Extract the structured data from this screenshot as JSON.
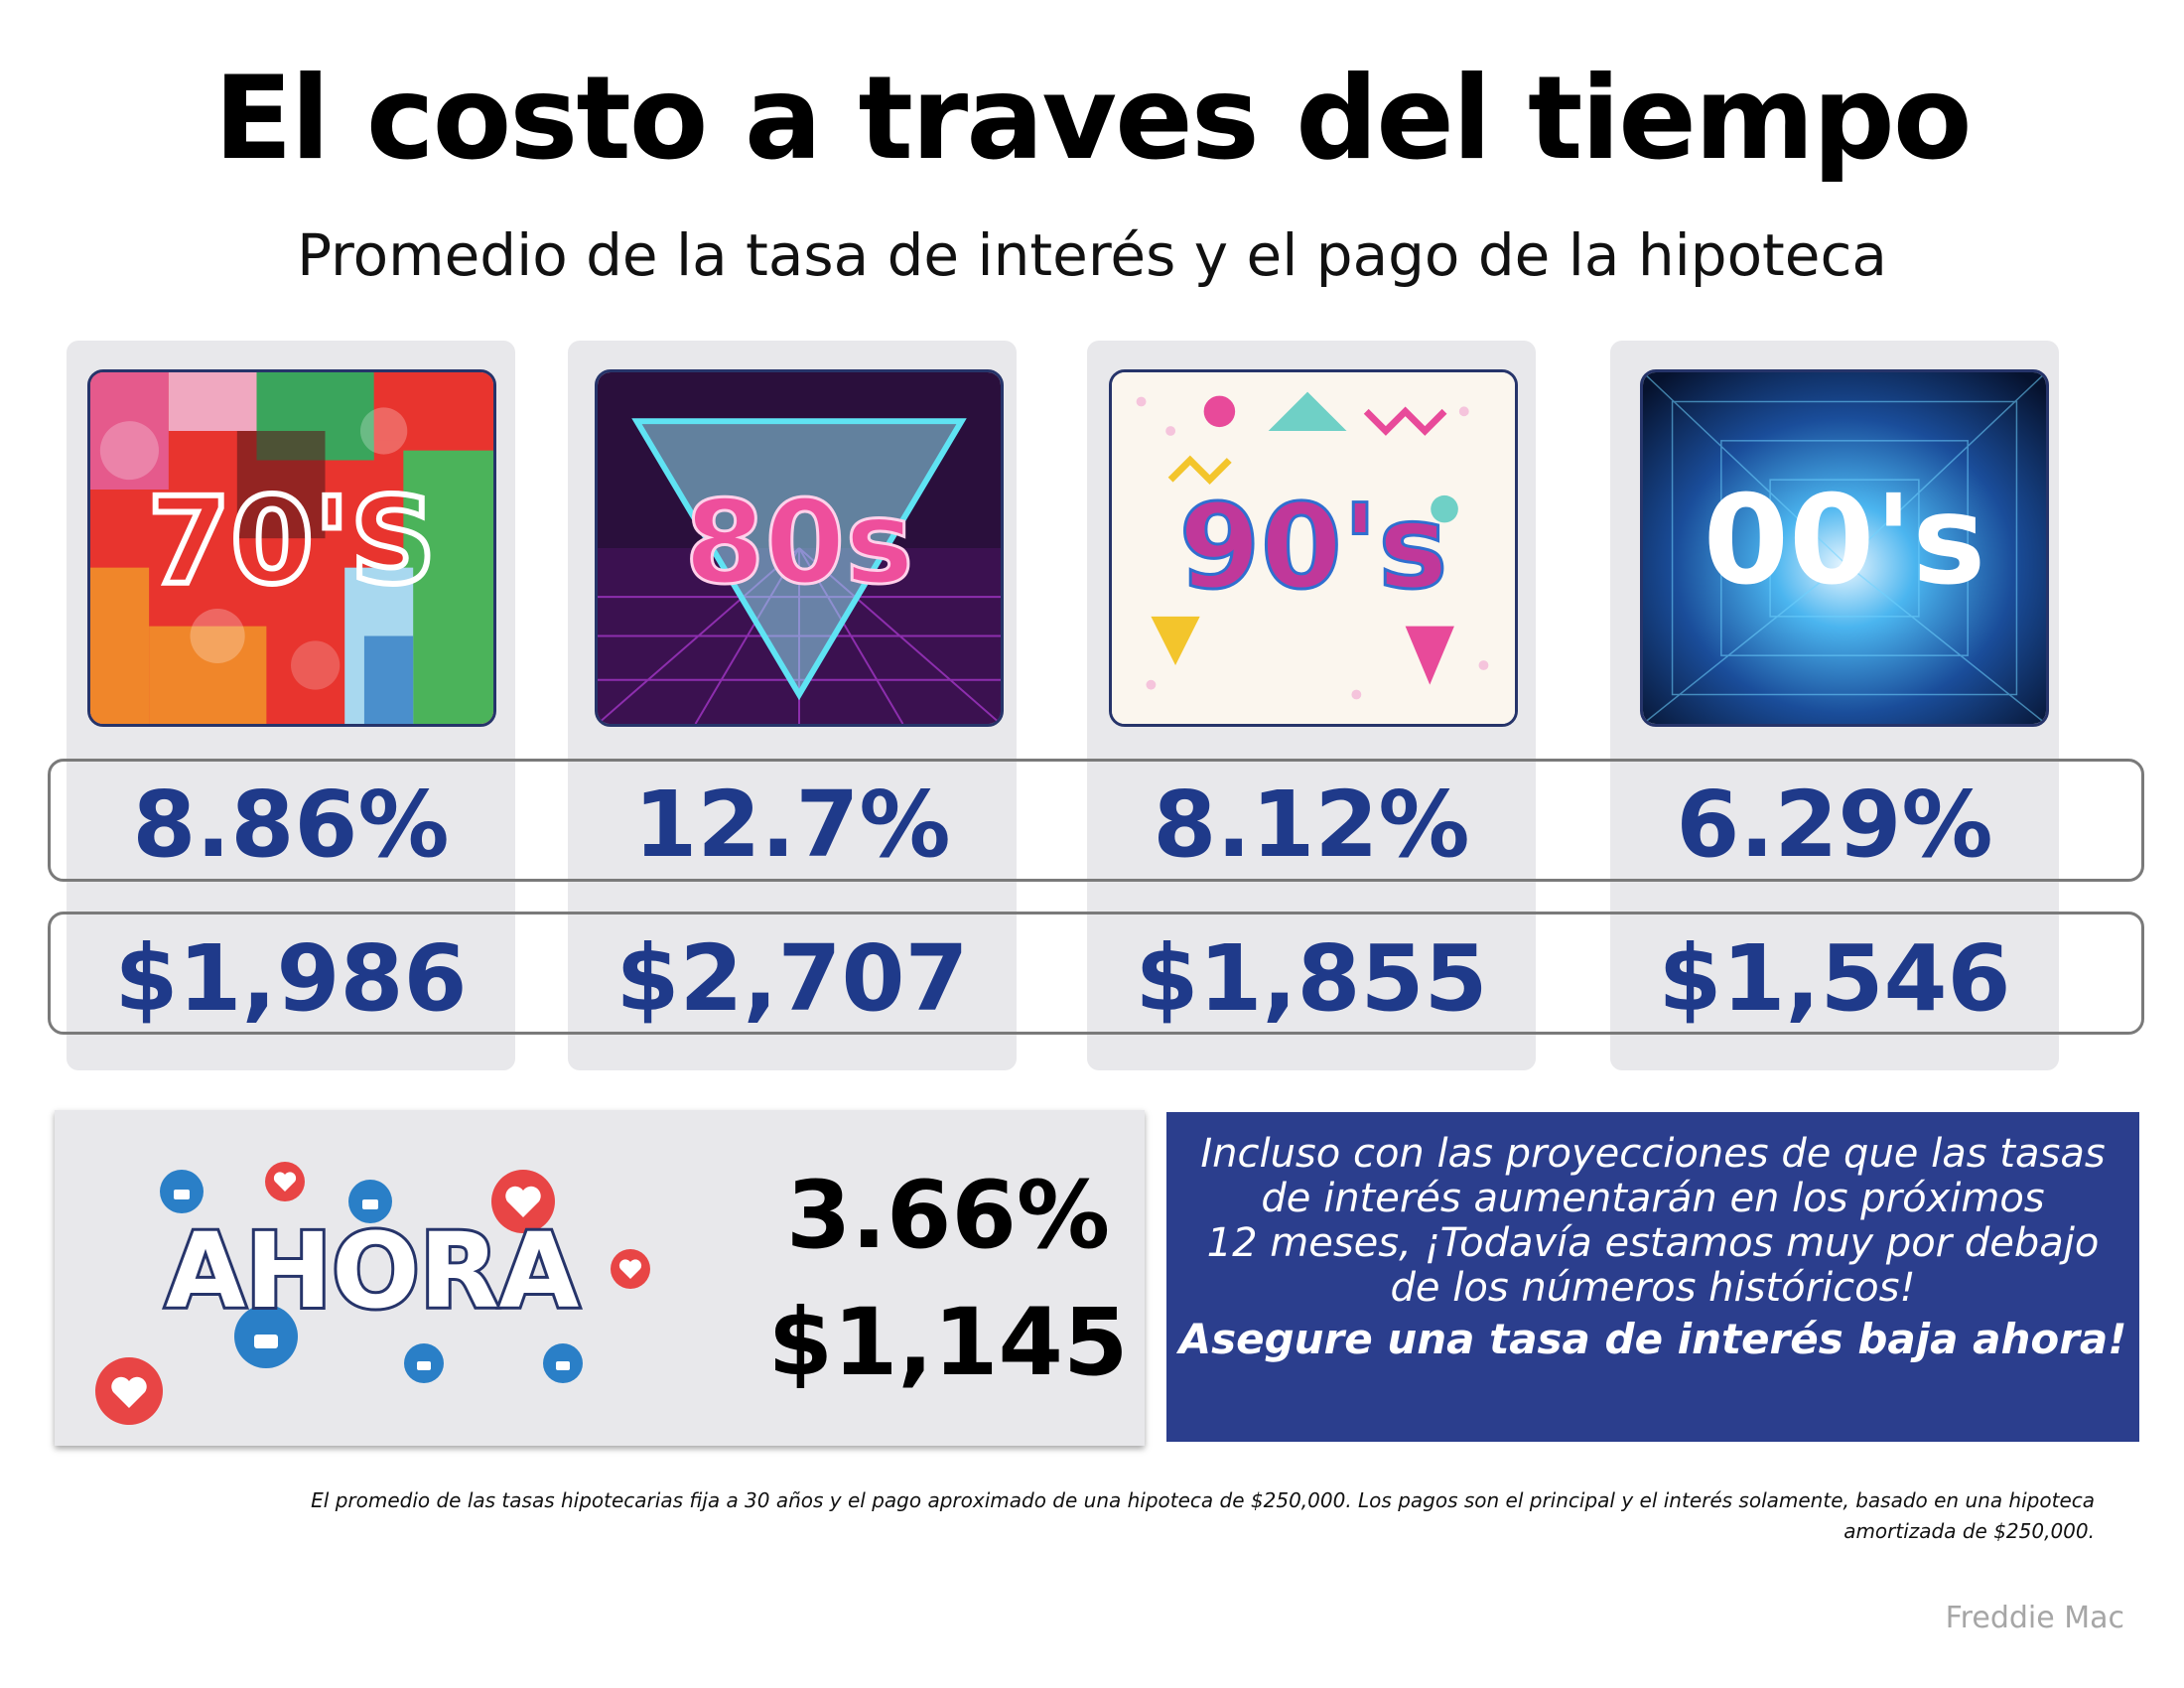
{
  "title": "El costo a traves del tiempo",
  "subtitle": "Promedio de la tasa de interés y el pago de la hipoteca",
  "decades": [
    {
      "label": "70'S",
      "rate": "8.86%",
      "payment": "$1,986"
    },
    {
      "label": "80s",
      "rate": "12.7%",
      "payment": "$2,707"
    },
    {
      "label": "90's",
      "rate": "8.12%",
      "payment": "$1,855"
    },
    {
      "label": "00's",
      "rate": "6.29%",
      "payment": "$1,546"
    }
  ],
  "now": {
    "label": "AHORA",
    "rate": "3.66%",
    "payment": "$1,145"
  },
  "message": {
    "lines": [
      "Incluso con las proyecciones de que las tasas",
      "de interés aumentarán en los próximos",
      "12 meses, ¡Todavía estamos muy por debajo",
      "de los números históricos!"
    ],
    "cta": "Asegure una tasa de interés baja ahora!"
  },
  "footnote": {
    "line1": "El promedio de las tasas hipotecarias fija a 30 años y el pago aproximado de una hipoteca de $250,000. Los pagos son el principal y el interés solamente, basado en una hipoteca",
    "line2": "amortizada de $250,000."
  },
  "source": "Freddie Mac",
  "colors": {
    "value_blue": "#1f3a8a",
    "panel_gray": "#e8e8eb",
    "box_blue": "#2b3e8d"
  }
}
